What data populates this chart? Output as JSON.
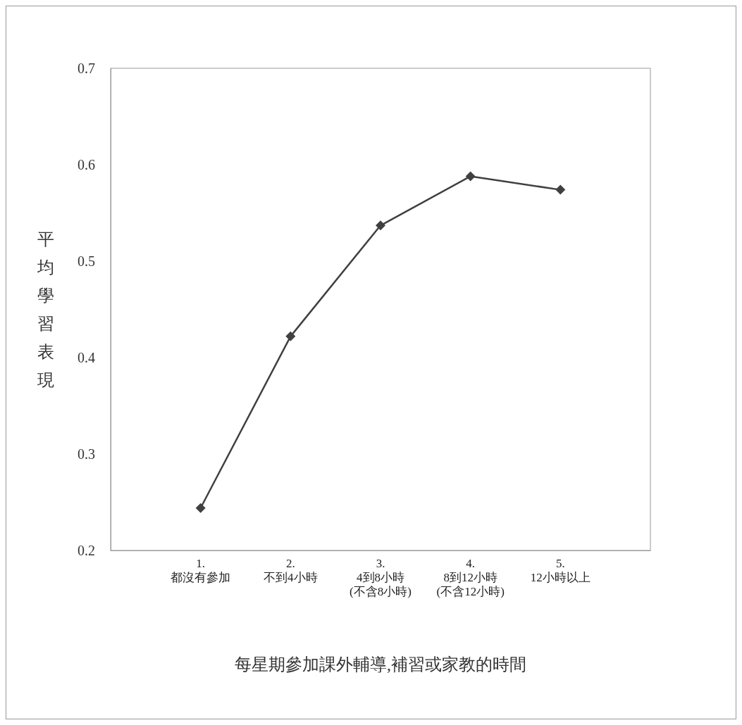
{
  "chart_data": {
    "type": "line",
    "xlabel": "每星期參加課外輔導,補習或家教的時間",
    "ylabel": "平均學習表現",
    "categories": [
      null,
      "1.\n都沒有參加",
      "2.\n不到4小時",
      "3.\n4到8小時\n(不含8小時)",
      "4.\n8到12小時\n(不含12小時)",
      "5.\n12小時以上",
      null
    ],
    "series": [
      {
        "color": "#404040",
        "values": [
          null,
          0.244,
          0.422,
          0.537,
          0.588,
          0.574,
          null
        ]
      }
    ],
    "ylim": [
      0.2,
      0.7
    ],
    "yticks": [
      0.2,
      0.3,
      0.4,
      0.5,
      0.6,
      0.7
    ],
    "marker": "diamond",
    "line_style": "solid"
  }
}
